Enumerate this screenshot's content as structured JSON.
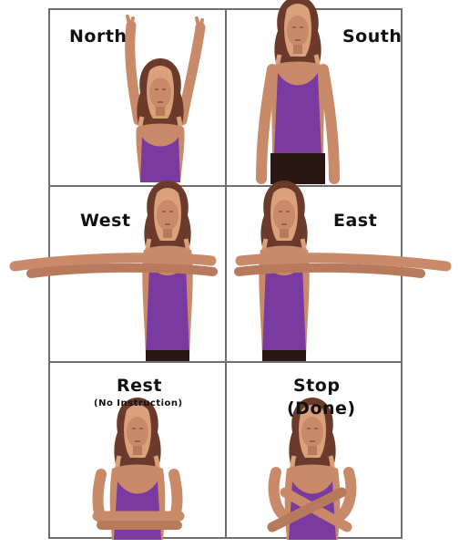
{
  "panels": [
    {
      "id": "north",
      "title": "North"
    },
    {
      "id": "south",
      "title": "South"
    },
    {
      "id": "west",
      "title": "West"
    },
    {
      "id": "east",
      "title": "East"
    },
    {
      "id": "rest",
      "title": "Rest",
      "subtitle": "(No Instruction)"
    },
    {
      "id": "stop",
      "title": "Stop",
      "subtitle": "(Done)"
    }
  ],
  "colors": {
    "skin": "#c98a6a",
    "skin_shadow": "#8a4e38",
    "hair": "#6b3a2a",
    "hair_light": "#d9a07a",
    "shirt": "#7a3aa0",
    "pants": "#2a1714",
    "grid": "#6f6f6f"
  }
}
